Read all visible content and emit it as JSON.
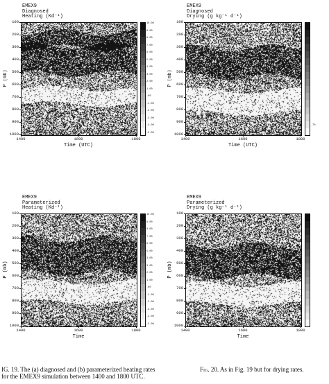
{
  "panels": [
    {
      "id": "a",
      "title_lines": [
        "EMEX9",
        "Diagnosed",
        "Heating (Kd⁻¹)"
      ],
      "yticks": [
        "100",
        "200",
        "300",
        "400",
        "500",
        "600",
        "700",
        "800",
        "900",
        "1000"
      ],
      "xticks": [
        "1400",
        "1600",
        "1800"
      ],
      "ylabel": "P (mb)",
      "xlabel": "Time (UTC)",
      "cbar_ticks": [
        "10.00",
        "9.00",
        "8.00",
        "7.00",
        "6.00",
        "5.00",
        "4.00",
        "3.00",
        "2.00",
        "1.00",
        ".00",
        "-1.00",
        "-2.00",
        "-3.00",
        "-4.00",
        "-5.00"
      ],
      "dark_bands": [
        [
          0.2,
          0.45
        ],
        [
          0.08,
          0.22
        ]
      ],
      "light_bands": [
        [
          0.58,
          0.72
        ]
      ]
    },
    {
      "id": "b",
      "title_lines": [
        "EMEX9",
        "Diagnosed",
        "Drying (g kg⁻¹ d⁻¹)"
      ],
      "yticks": [
        "100",
        "200",
        "300",
        "400",
        "500",
        "600",
        "700",
        "800",
        "900",
        "1000"
      ],
      "xticks": [
        "1400",
        "1600",
        "1800"
      ],
      "ylabel": "P (mb)",
      "xlabel": "Time (UTC)",
      "cbar_ticks": [
        "",
        "",
        "",
        "",
        "",
        "",
        "",
        "",
        "",
        "",
        "",
        "",
        "",
        "",
        ".70",
        ""
      ],
      "dark_bands": [
        [
          0.22,
          0.48
        ]
      ],
      "light_bands": [
        [
          0.6,
          0.8
        ]
      ]
    },
    {
      "id": "c",
      "title_lines": [
        "EMEX9",
        "Parameterized",
        "Heating (Kd⁻¹)"
      ],
      "yticks": [
        "100",
        "200",
        "300",
        "400",
        "500",
        "600",
        "700",
        "800",
        "900",
        "1000"
      ],
      "xticks": [
        "1400",
        "1600",
        "1800"
      ],
      "ylabel": "P (mb)",
      "xlabel": "Time",
      "cbar_ticks": [
        "10.00",
        "9.00",
        "8.00",
        "7.00",
        "6.00",
        "5.00",
        "4.00",
        "3.00",
        "2.00",
        "1.00",
        ".00",
        "-1.00",
        "-2.00",
        "-3.00",
        "-4.00",
        "-5.00"
      ],
      "dark_bands": [
        [
          0.22,
          0.52
        ]
      ],
      "light_bands": [
        [
          0.6,
          0.78
        ]
      ]
    },
    {
      "id": "d",
      "title_lines": [
        "EMEX9",
        "Parameterized",
        "Drying (g kg⁻¹ d⁻¹)"
      ],
      "yticks": [
        "100",
        "200",
        "300",
        "400",
        "500",
        "600",
        "700",
        "800",
        "900",
        "1000"
      ],
      "xticks": [
        "1400",
        "1600",
        "1800"
      ],
      "ylabel": "P (mb)",
      "xlabel": "Time",
      "cbar_ticks": [
        "",
        "",
        "",
        "",
        "",
        "",
        "",
        "",
        "",
        "",
        "",
        "",
        "",
        "",
        "",
        ""
      ],
      "dark_bands": [
        [
          0.28,
          0.55
        ]
      ],
      "light_bands": [
        [
          0.62,
          0.8
        ]
      ]
    }
  ],
  "captions": {
    "fig19_label": "IG. 19.",
    "fig19_text": "The (a) diagnosed and (b) parameterized heating rates for the EMEX9 simulation between 1400 and 1800 UTC.",
    "fig20_label": "Fig. 20.",
    "fig20_text": "As in Fig. 19 but for drying rates."
  }
}
